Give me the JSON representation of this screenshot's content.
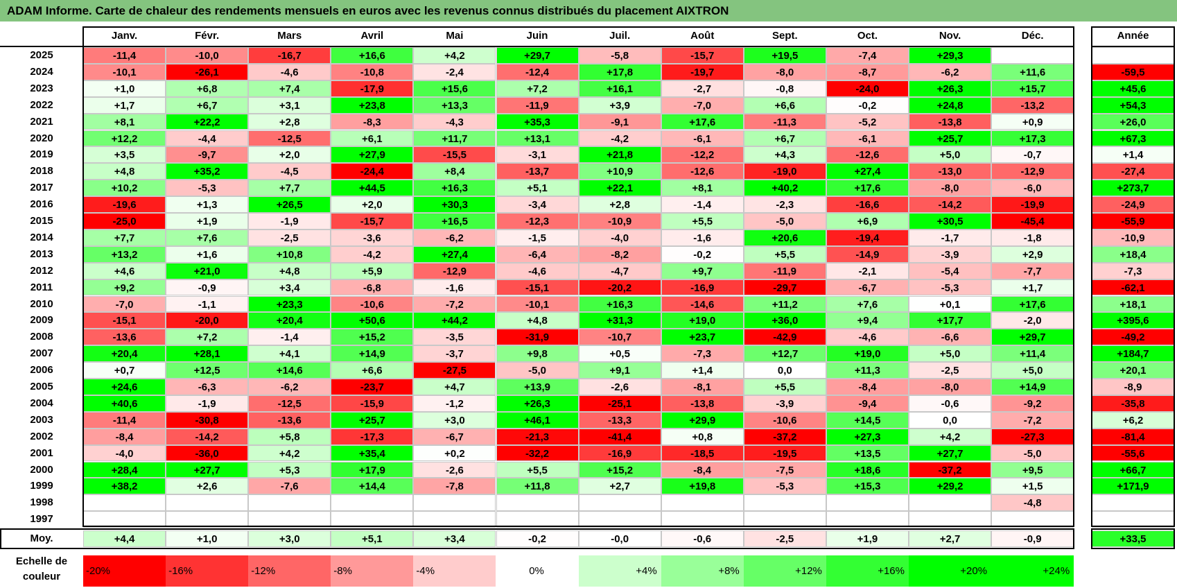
{
  "title": "ADAM Informe. Carte de chaleur des rendements mensuels en euros avec les revenus connus distribués du placement AIXTRON",
  "chart_data": {
    "type": "heatmap",
    "title": "ADAM Informe. Carte de chaleur des rendements mensuels en euros avec les revenus connus distribués du placement AIXTRON",
    "months": [
      "Janv.",
      "Févr.",
      "Mars",
      "Avril",
      "Mai",
      "Juin",
      "Juil.",
      "Août",
      "Sept.",
      "Oct.",
      "Nov.",
      "Déc."
    ],
    "annual_header": "Année",
    "rows": [
      {
        "year": "2025",
        "values": [
          "-11,4",
          "-10,0",
          "-16,7",
          "+16,6",
          "+4,2",
          "+29,7",
          "-5,8",
          "-15,7",
          "+19,5",
          "-7,4",
          "+29,3",
          ""
        ],
        "annual": ""
      },
      {
        "year": "2024",
        "values": [
          "-10,1",
          "-26,1",
          "-4,6",
          "-10,8",
          "-2,4",
          "-12,4",
          "+17,8",
          "-19,7",
          "-8,0",
          "-8,7",
          "-6,2",
          "+11,6"
        ],
        "annual": "-59,5"
      },
      {
        "year": "2023",
        "values": [
          "+1,0",
          "+6,8",
          "+7,4",
          "-17,9",
          "+15,6",
          "+7,2",
          "+16,1",
          "-2,7",
          "-0,8",
          "-24,0",
          "+26,3",
          "+15,7"
        ],
        "annual": "+45,6"
      },
      {
        "year": "2022",
        "values": [
          "+1,7",
          "+6,7",
          "+3,1",
          "+23,8",
          "+13,3",
          "-11,9",
          "+3,9",
          "-7,0",
          "+6,6",
          "-0,2",
          "+24,8",
          "-13,2"
        ],
        "annual": "+54,3"
      },
      {
        "year": "2021",
        "values": [
          "+8,1",
          "+22,2",
          "+2,8",
          "-8,3",
          "-4,3",
          "+35,3",
          "-9,1",
          "+17,6",
          "-11,3",
          "-5,2",
          "-13,8",
          "+0,9"
        ],
        "annual": "+26,0"
      },
      {
        "year": "2020",
        "values": [
          "+12,2",
          "-4,4",
          "-12,5",
          "+6,1",
          "+11,7",
          "+13,1",
          "-4,2",
          "-6,1",
          "+6,7",
          "-6,1",
          "+25,7",
          "+17,3"
        ],
        "annual": "+67,3"
      },
      {
        "year": "2019",
        "values": [
          "+3,5",
          "-9,7",
          "+2,0",
          "+27,9",
          "-15,5",
          "-3,1",
          "+21,8",
          "-12,2",
          "+4,3",
          "-12,6",
          "+5,0",
          "-0,7"
        ],
        "annual": "+1,4"
      },
      {
        "year": "2018",
        "values": [
          "+4,8",
          "+35,2",
          "-4,5",
          "-24,4",
          "+8,4",
          "-13,7",
          "+10,9",
          "-12,6",
          "-19,0",
          "+27,4",
          "-13,0",
          "-12,9"
        ],
        "annual": "-27,4"
      },
      {
        "year": "2017",
        "values": [
          "+10,2",
          "-5,3",
          "+7,7",
          "+44,5",
          "+16,3",
          "+5,1",
          "+22,1",
          "+8,1",
          "+40,2",
          "+17,6",
          "-8,0",
          "-6,0"
        ],
        "annual": "+273,7"
      },
      {
        "year": "2016",
        "values": [
          "-19,6",
          "+1,3",
          "+26,5",
          "+2,0",
          "+30,3",
          "-3,4",
          "+2,8",
          "-1,4",
          "-2,3",
          "-16,6",
          "-14,2",
          "-19,9"
        ],
        "annual": "-24,9"
      },
      {
        "year": "2015",
        "values": [
          "-25,0",
          "+1,9",
          "-1,9",
          "-15,7",
          "+16,5",
          "-12,3",
          "-10,9",
          "+5,5",
          "-5,0",
          "+6,9",
          "+30,5",
          "-45,4"
        ],
        "annual": "-55,9"
      },
      {
        "year": "2014",
        "values": [
          "+7,7",
          "+7,6",
          "-2,5",
          "-3,6",
          "-6,2",
          "-1,5",
          "-4,0",
          "-1,6",
          "+20,6",
          "-19,4",
          "-1,7",
          "-1,8"
        ],
        "annual": "-10,9"
      },
      {
        "year": "2013",
        "values": [
          "+13,2",
          "+1,6",
          "+10,8",
          "-4,2",
          "+27,4",
          "-6,4",
          "-8,2",
          "-0,2",
          "+5,5",
          "-14,9",
          "-3,9",
          "+2,9"
        ],
        "annual": "+18,4"
      },
      {
        "year": "2012",
        "values": [
          "+4,6",
          "+21,0",
          "+4,8",
          "+5,9",
          "-12,9",
          "-4,6",
          "-4,7",
          "+9,7",
          "-11,9",
          "-2,1",
          "-5,4",
          "-7,7"
        ],
        "annual": "-7,3"
      },
      {
        "year": "2011",
        "values": [
          "+9,2",
          "-0,9",
          "+3,4",
          "-6,8",
          "-1,6",
          "-15,1",
          "-20,2",
          "-16,9",
          "-29,7",
          "-6,7",
          "-5,3",
          "+1,7"
        ],
        "annual": "-62,1"
      },
      {
        "year": "2010",
        "values": [
          "-7,0",
          "-1,1",
          "+23,3",
          "-10,6",
          "-7,2",
          "-10,1",
          "+16,3",
          "-14,6",
          "+11,2",
          "+7,6",
          "+0,1",
          "+17,6"
        ],
        "annual": "+18,1"
      },
      {
        "year": "2009",
        "values": [
          "-15,1",
          "-20,0",
          "+20,4",
          "+50,6",
          "+44,2",
          "+4,8",
          "+31,3",
          "+19,0",
          "+36,0",
          "+9,4",
          "+17,7",
          "-2,0"
        ],
        "annual": "+395,6"
      },
      {
        "year": "2008",
        "values": [
          "-13,6",
          "+7,2",
          "-1,4",
          "+15,2",
          "-3,5",
          "-31,9",
          "-10,7",
          "+23,7",
          "-42,9",
          "-4,6",
          "-6,6",
          "+29,7"
        ],
        "annual": "-49,2"
      },
      {
        "year": "2007",
        "values": [
          "+20,4",
          "+28,1",
          "+4,1",
          "+14,9",
          "-3,7",
          "+9,8",
          "+0,5",
          "-7,3",
          "+12,7",
          "+19,0",
          "+5,0",
          "+11,4"
        ],
        "annual": "+184,7"
      },
      {
        "year": "2006",
        "values": [
          "+0,7",
          "+12,5",
          "+14,6",
          "+6,6",
          "-27,5",
          "-5,0",
          "+9,1",
          "+1,4",
          "0,0",
          "+11,3",
          "-2,5",
          "+5,0"
        ],
        "annual": "+20,1"
      },
      {
        "year": "2005",
        "values": [
          "+24,6",
          "-6,3",
          "-6,2",
          "-23,7",
          "+4,7",
          "+13,9",
          "-2,6",
          "-8,1",
          "+5,5",
          "-8,4",
          "-8,0",
          "+14,9"
        ],
        "annual": "-8,9"
      },
      {
        "year": "2004",
        "values": [
          "+40,6",
          "-1,9",
          "-12,5",
          "-15,9",
          "-1,2",
          "+26,3",
          "-25,1",
          "-13,8",
          "-3,9",
          "-9,4",
          "-0,6",
          "-9,2"
        ],
        "annual": "-35,8"
      },
      {
        "year": "2003",
        "values": [
          "-11,4",
          "-30,8",
          "-13,6",
          "+25,7",
          "+3,0",
          "+46,1",
          "-13,3",
          "+29,9",
          "-10,6",
          "+14,5",
          "0,0",
          "-7,2"
        ],
        "annual": "+6,2"
      },
      {
        "year": "2002",
        "values": [
          "-8,4",
          "-14,2",
          "+5,8",
          "-17,3",
          "-6,7",
          "-21,3",
          "-41,4",
          "+0,8",
          "-37,2",
          "+27,3",
          "+4,2",
          "-27,3"
        ],
        "annual": "-81,4"
      },
      {
        "year": "2001",
        "values": [
          "-4,0",
          "-36,0",
          "+4,2",
          "+35,4",
          "+0,2",
          "-32,2",
          "-16,9",
          "-18,5",
          "-19,5",
          "+13,5",
          "+27,7",
          "-5,0"
        ],
        "annual": "-55,6"
      },
      {
        "year": "2000",
        "values": [
          "+28,4",
          "+27,7",
          "+5,3",
          "+17,9",
          "-2,6",
          "+5,5",
          "+15,2",
          "-8,4",
          "-7,5",
          "+18,6",
          "-37,2",
          "+9,5"
        ],
        "annual": "+66,7"
      },
      {
        "year": "1999",
        "values": [
          "+38,2",
          "+2,6",
          "-7,6",
          "+14,4",
          "-7,8",
          "+11,8",
          "+2,7",
          "+19,8",
          "-5,3",
          "+15,3",
          "+29,2",
          "+1,5"
        ],
        "annual": "+171,9"
      },
      {
        "year": "1998",
        "values": [
          "",
          "",
          "",
          "",
          "",
          "",
          "",
          "",
          "",
          "",
          "",
          "-4,8"
        ],
        "annual": ""
      },
      {
        "year": "1997",
        "values": [
          "",
          "",
          "",
          "",
          "",
          "",
          "",
          "",
          "",
          "",
          "",
          ""
        ],
        "annual": ""
      }
    ],
    "average": {
      "label": "Moy.",
      "values": [
        "+4,4",
        "+1,0",
        "+3,0",
        "+5,1",
        "+3,4",
        "-0,2",
        "-0,0",
        "-0,6",
        "-2,5",
        "+1,9",
        "+2,7",
        "-0,9"
      ],
      "annual": "+33,5"
    },
    "color_scale": {
      "label": "Echelle de couleur",
      "steps": [
        {
          "text": "-20%",
          "value": -20,
          "color": "#ff0000"
        },
        {
          "text": "-16%",
          "value": -16,
          "color": "#ff3333"
        },
        {
          "text": "-12%",
          "value": -12,
          "color": "#ff6666"
        },
        {
          "text": "-8%",
          "value": -8,
          "color": "#ff9999"
        },
        {
          "text": "-4%",
          "value": -4,
          "color": "#ffcccc"
        },
        {
          "text": "0%",
          "value": 0,
          "color": "#ffffff"
        },
        {
          "text": "+4%",
          "value": 4,
          "color": "#ccffcc"
        },
        {
          "text": "+8%",
          "value": 8,
          "color": "#99ff99"
        },
        {
          "text": "+12%",
          "value": 12,
          "color": "#66ff66"
        },
        {
          "text": "+16%",
          "value": 16,
          "color": "#33ff33"
        },
        {
          "text": "+20%",
          "value": 20,
          "color": "#00ff00"
        },
        {
          "text": "+24%",
          "value": 24,
          "color": "#00ff00"
        }
      ]
    }
  }
}
